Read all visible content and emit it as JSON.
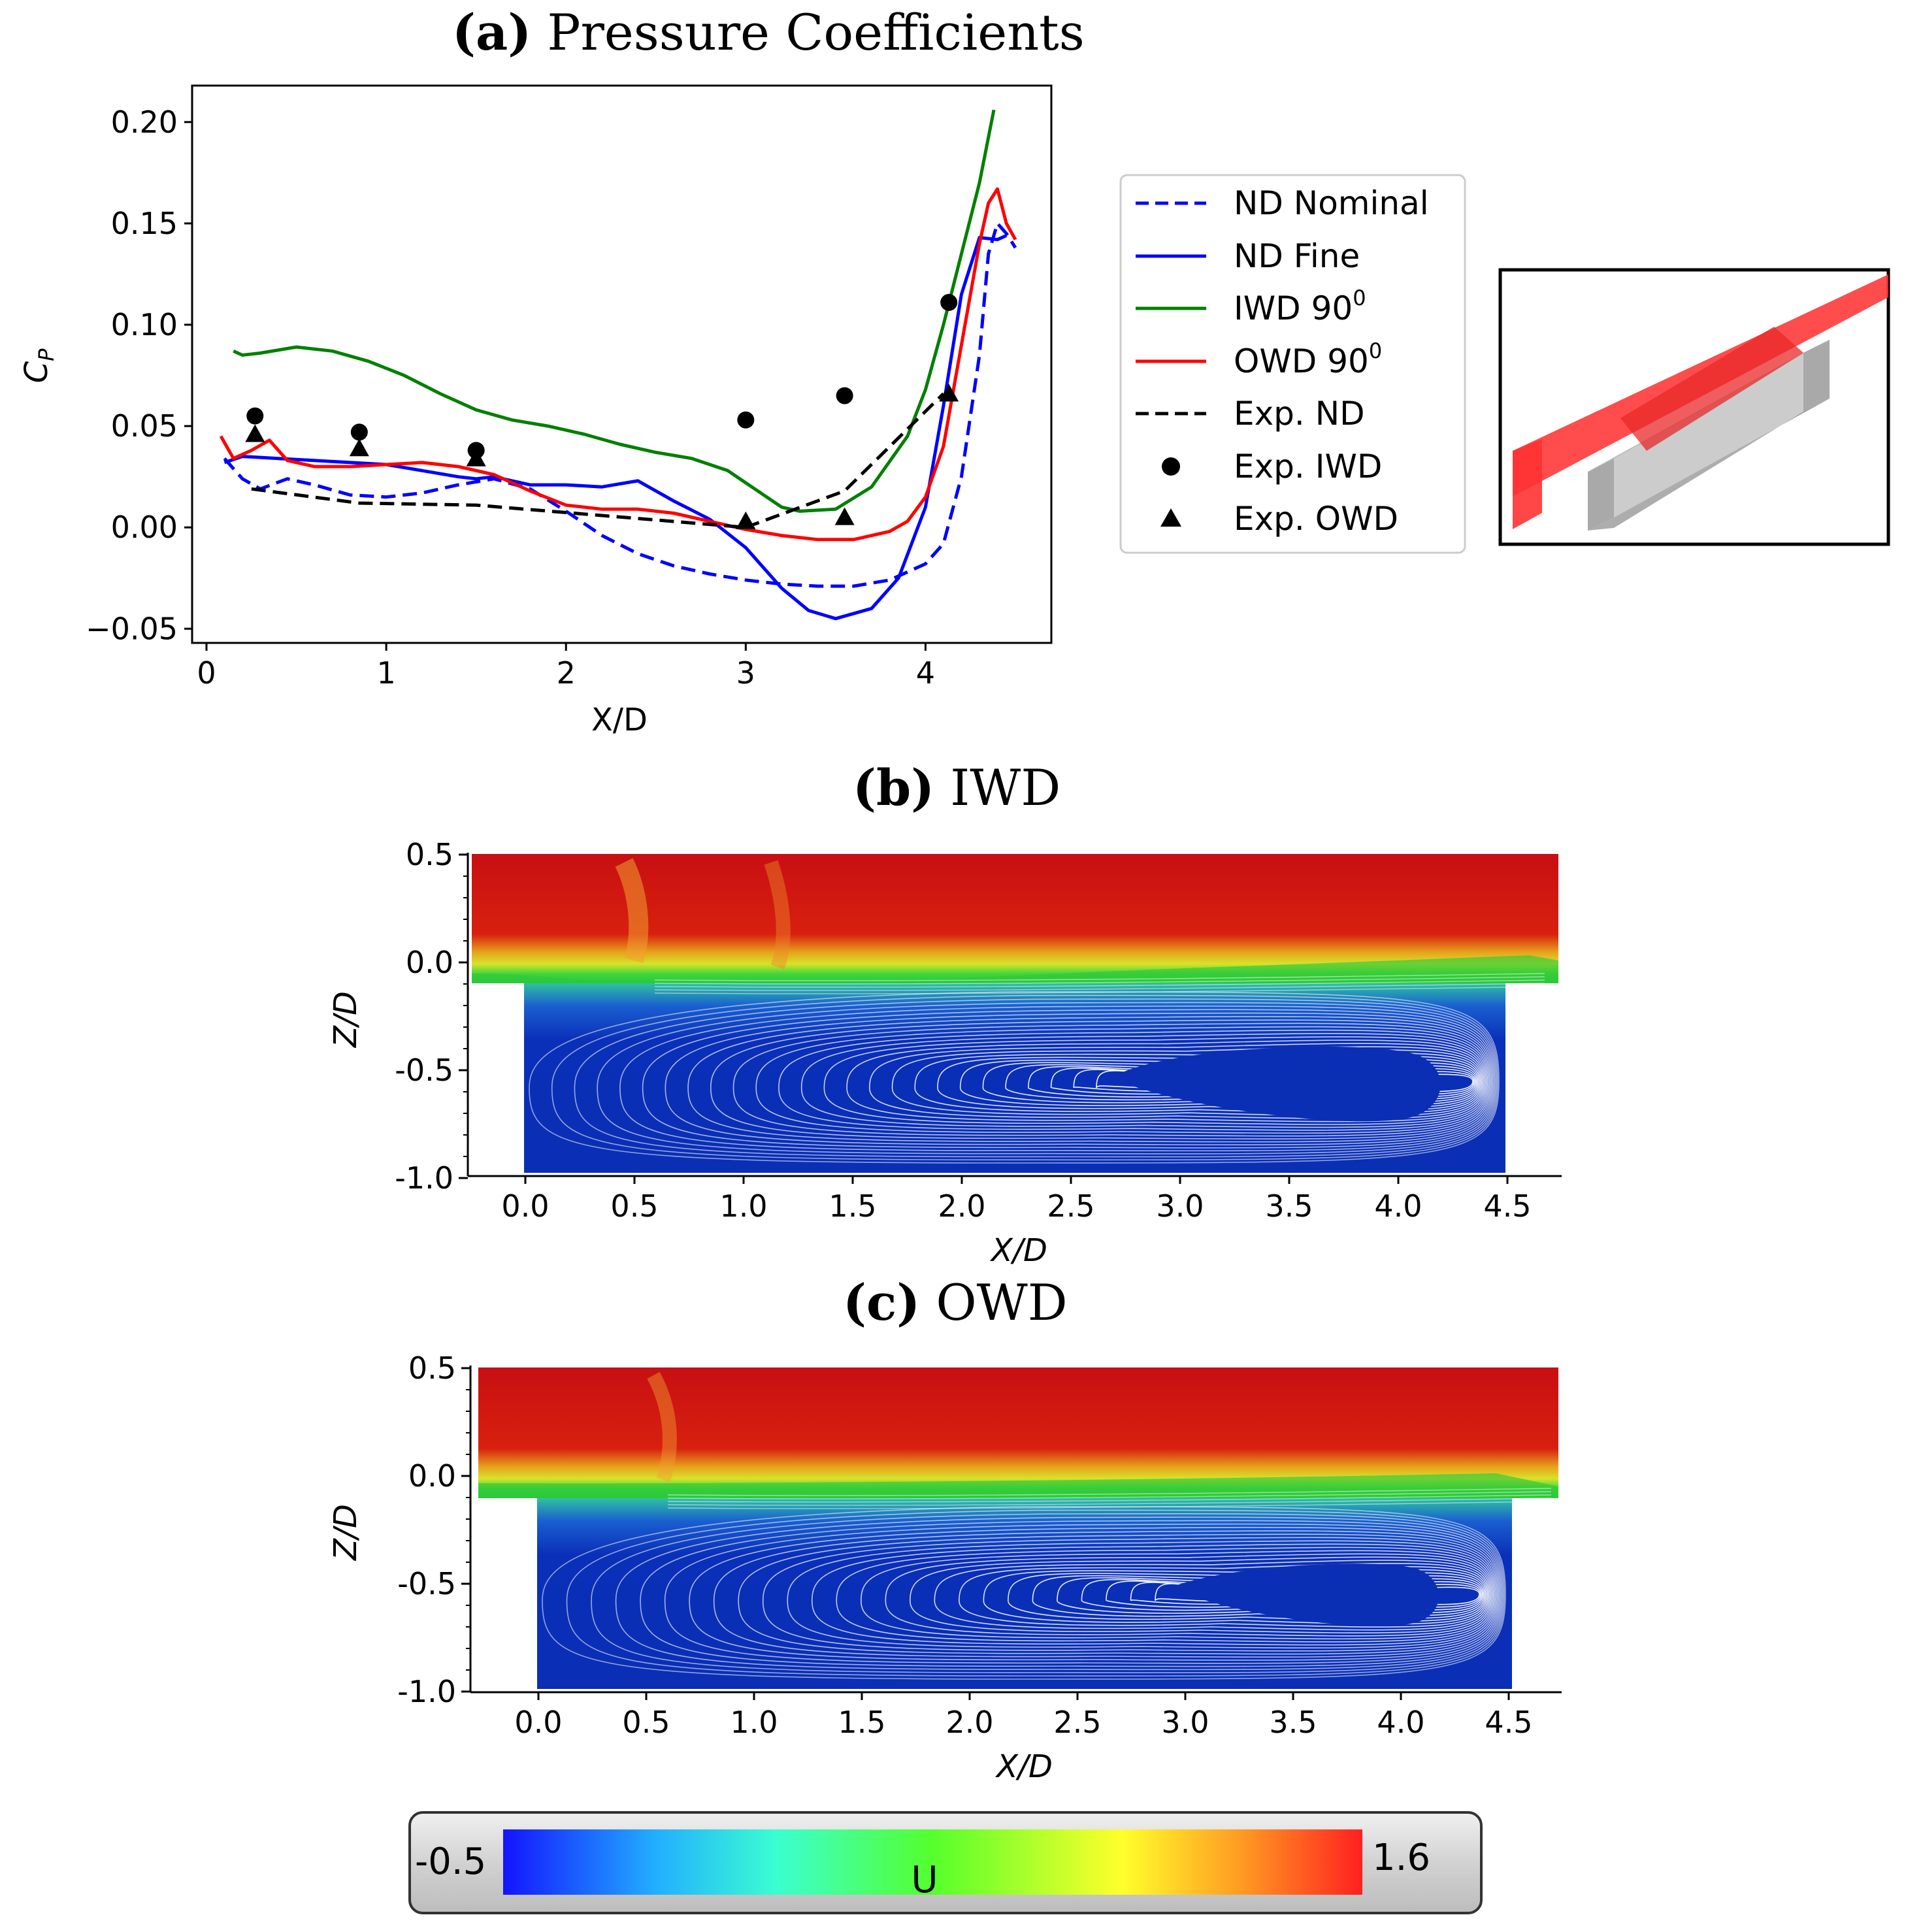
{
  "chart_data": [
    {
      "type": "line",
      "title_letter": "(a)",
      "title_rest": " Pressure Coefficients",
      "xlabel": "X/D",
      "ylabel": "C",
      "ylabel_sub": "P",
      "xlim": [
        -0.08,
        4.7
      ],
      "ylim": [
        -0.057,
        0.218
      ],
      "xticks": [
        0,
        1,
        2,
        3,
        4
      ],
      "yticks": [
        -0.05,
        0.0,
        0.05,
        0.1,
        0.15,
        0.2
      ],
      "yticklabels": [
        "−0.05",
        "0.00",
        "0.05",
        "0.10",
        "0.15",
        "0.20"
      ],
      "legend_position": "right, outside plot",
      "series": [
        {
          "name": "ND Nominal",
          "color": "#0000ff",
          "dash": "dashed",
          "x": [
            0.1,
            0.2,
            0.3,
            0.45,
            0.6,
            0.8,
            1.0,
            1.2,
            1.4,
            1.6,
            1.8,
            2.0,
            2.2,
            2.4,
            2.6,
            2.8,
            3.0,
            3.2,
            3.4,
            3.6,
            3.8,
            4.0,
            4.1,
            4.2,
            4.3,
            4.35,
            4.4,
            4.45,
            4.5
          ],
          "y": [
            0.034,
            0.024,
            0.019,
            0.024,
            0.021,
            0.016,
            0.015,
            0.017,
            0.021,
            0.024,
            0.019,
            0.008,
            -0.004,
            -0.013,
            -0.019,
            -0.023,
            -0.026,
            -0.028,
            -0.029,
            -0.029,
            -0.026,
            -0.018,
            -0.008,
            0.025,
            0.085,
            0.135,
            0.15,
            0.145,
            0.138
          ]
        },
        {
          "name": "ND Fine",
          "color": "#0000ff",
          "dash": "solid",
          "x": [
            0.1,
            0.2,
            0.4,
            0.6,
            0.8,
            1.0,
            1.2,
            1.4,
            1.5,
            1.6,
            1.8,
            2.0,
            2.2,
            2.4,
            2.6,
            2.8,
            3.0,
            3.2,
            3.35,
            3.5,
            3.7,
            3.85,
            4.0,
            4.1,
            4.2,
            4.3,
            4.4,
            4.45
          ],
          "y": [
            0.032,
            0.035,
            0.034,
            0.033,
            0.032,
            0.031,
            0.028,
            0.025,
            0.024,
            0.025,
            0.021,
            0.021,
            0.02,
            0.023,
            0.013,
            0.004,
            -0.01,
            -0.03,
            -0.041,
            -0.045,
            -0.04,
            -0.025,
            0.01,
            0.06,
            0.115,
            0.143,
            0.142,
            0.144
          ]
        },
        {
          "name": "IWD 90",
          "sup": "0",
          "color": "#008000",
          "dash": "solid",
          "x": [
            0.15,
            0.2,
            0.3,
            0.5,
            0.7,
            0.9,
            1.1,
            1.3,
            1.5,
            1.7,
            1.9,
            2.1,
            2.3,
            2.5,
            2.7,
            2.9,
            3.0,
            3.1,
            3.2,
            3.3,
            3.5,
            3.7,
            3.9,
            4.0,
            4.1,
            4.2,
            4.3,
            4.38
          ],
          "y": [
            0.087,
            0.085,
            0.086,
            0.089,
            0.087,
            0.082,
            0.075,
            0.066,
            0.058,
            0.053,
            0.05,
            0.046,
            0.041,
            0.037,
            0.034,
            0.028,
            0.022,
            0.016,
            0.01,
            0.008,
            0.009,
            0.02,
            0.045,
            0.068,
            0.1,
            0.135,
            0.17,
            0.206
          ]
        },
        {
          "name": "OWD 90",
          "sup": "0",
          "color": "#ff0000",
          "dash": "solid",
          "x": [
            0.08,
            0.15,
            0.25,
            0.35,
            0.45,
            0.6,
            0.8,
            1.0,
            1.2,
            1.4,
            1.6,
            1.8,
            2.0,
            2.2,
            2.4,
            2.6,
            2.8,
            3.0,
            3.2,
            3.4,
            3.6,
            3.8,
            3.9,
            4.0,
            4.1,
            4.2,
            4.3,
            4.35,
            4.4,
            4.45,
            4.5
          ],
          "y": [
            0.045,
            0.034,
            0.038,
            0.043,
            0.033,
            0.03,
            0.03,
            0.031,
            0.032,
            0.03,
            0.026,
            0.018,
            0.011,
            0.009,
            0.009,
            0.007,
            0.003,
            -0.001,
            -0.004,
            -0.006,
            -0.006,
            -0.002,
            0.003,
            0.015,
            0.04,
            0.09,
            0.14,
            0.16,
            0.167,
            0.15,
            0.142
          ]
        },
        {
          "name": "Exp. ND",
          "color": "#000000",
          "dash": "dashed",
          "x": [
            0.25,
            0.85,
            1.5,
            3.0,
            3.55,
            4.1
          ],
          "y": [
            0.019,
            0.012,
            0.011,
            0.0,
            0.018,
            0.066
          ]
        },
        {
          "name": "Exp. IWD",
          "color": "#000000",
          "marker": "circle",
          "x": [
            0.27,
            0.85,
            1.5,
            3.0,
            3.55,
            4.13
          ],
          "y": [
            0.055,
            0.047,
            0.038,
            0.053,
            0.065,
            0.111
          ]
        },
        {
          "name": "Exp. OWD",
          "color": "#000000",
          "marker": "triangle",
          "x": [
            0.27,
            0.85,
            1.5,
            3.0,
            3.55,
            4.13
          ],
          "y": [
            0.046,
            0.039,
            0.034,
            0.003,
            0.005,
            0.066
          ]
        }
      ]
    },
    {
      "type": "heatmap",
      "title_letter": "(b)",
      "title_rest": " IWD",
      "variable": "U",
      "xlabel": "X/D",
      "ylabel": "Z/D",
      "xticks": [
        "0.0",
        "0.5",
        "1.0",
        "1.5",
        "2.0",
        "2.5",
        "3.0",
        "3.5",
        "4.0",
        "4.5"
      ],
      "yticks": [
        "0.5",
        "0.0",
        "-0.5",
        "-1.0"
      ],
      "xlim": [
        -0.3,
        4.8
      ],
      "ylim": [
        -1.0,
        0.5
      ],
      "cavity": {
        "x": [
          0.0,
          4.5
        ],
        "z": [
          -1.0,
          -0.1
        ]
      },
      "recirculation_core": {
        "x": [
          2.6,
          4.2
        ],
        "z_center": -0.55
      }
    },
    {
      "type": "heatmap",
      "title_letter": "(c)",
      "title_rest": " OWD",
      "variable": "U",
      "xlabel": "X/D",
      "ylabel": "Z/D",
      "xticks": [
        "0.0",
        "0.5",
        "1.0",
        "1.5",
        "2.0",
        "2.5",
        "3.0",
        "3.5",
        "4.0",
        "4.5"
      ],
      "yticks": [
        "0.5",
        "0.0",
        "-0.5",
        "-1.0"
      ],
      "xlim": [
        -0.3,
        4.8
      ],
      "ylim": [
        -1.0,
        0.5
      ],
      "cavity": {
        "x": [
          0.0,
          4.5
        ],
        "z": [
          -1.0,
          -0.1
        ]
      },
      "recirculation_core": {
        "x": [
          3.0,
          4.2
        ],
        "z_center": -0.56
      }
    }
  ],
  "colorbar": {
    "label": "U",
    "min": "-0.5",
    "max": "1.6",
    "colors": [
      "#1414ff",
      "#23b0ff",
      "#3bffd0",
      "#55ff2c",
      "#ffff2c",
      "#ff9a22",
      "#ff2020"
    ]
  }
}
